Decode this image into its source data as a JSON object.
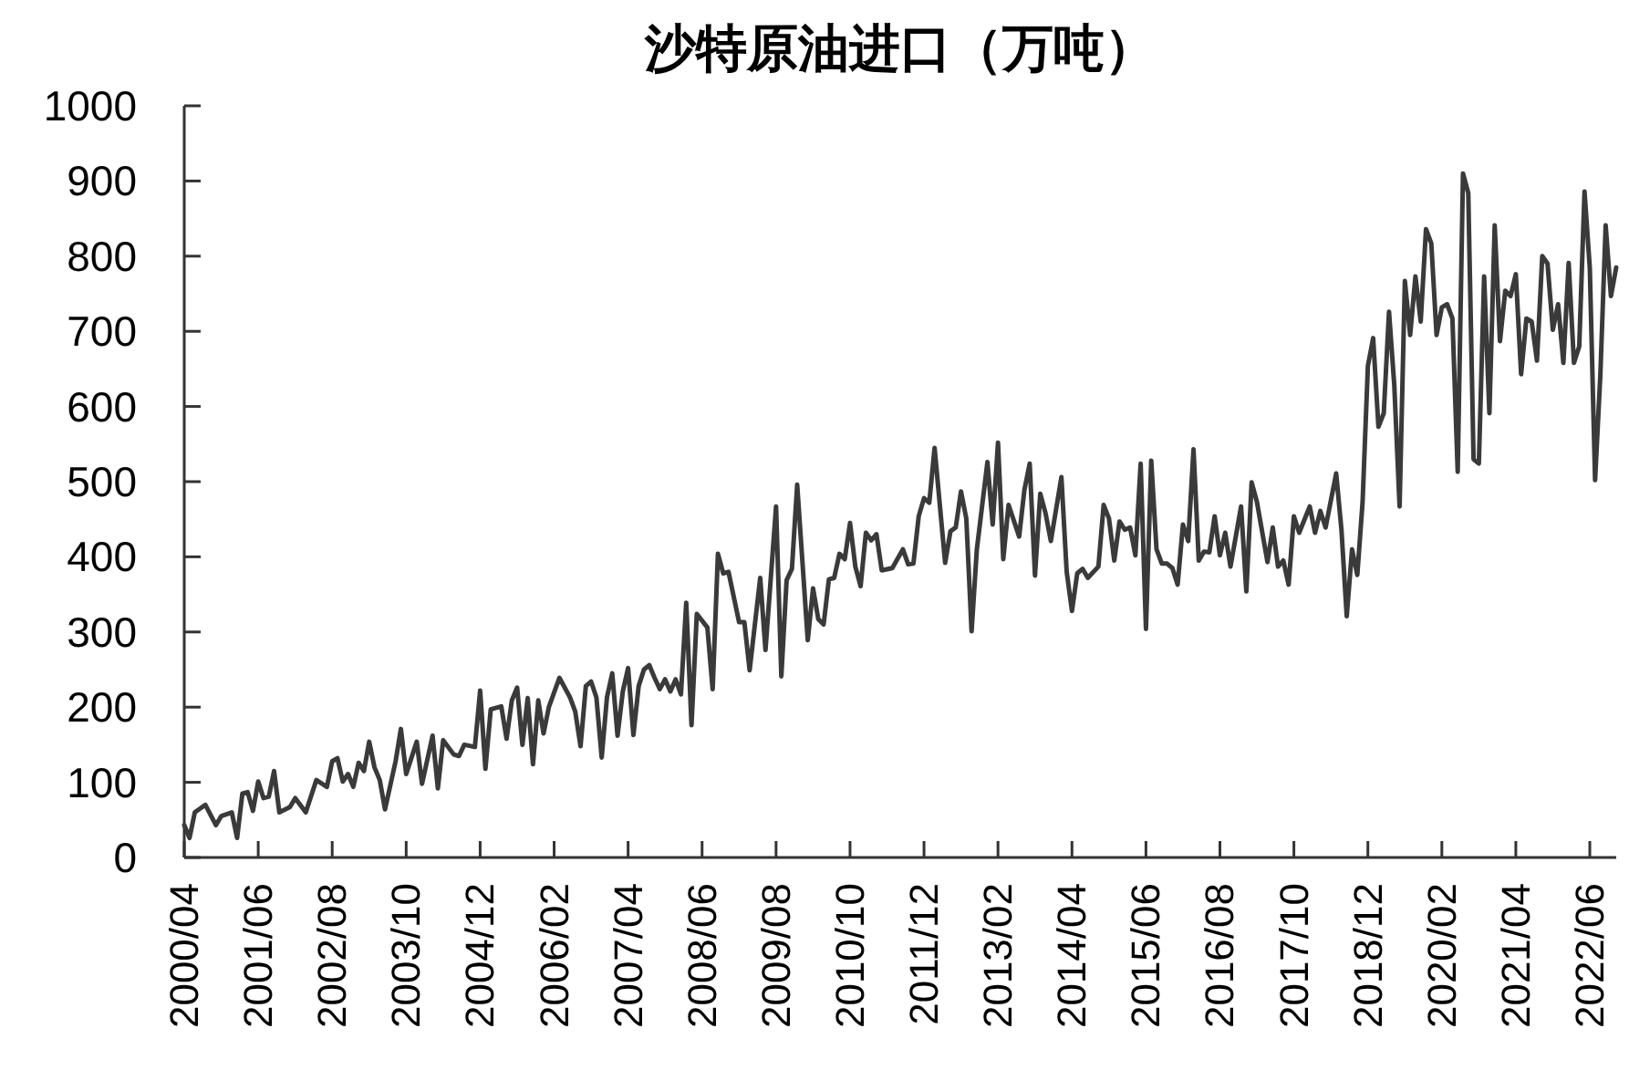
{
  "chart_data": {
    "type": "line",
    "title": "沙特原油进口（万吨）",
    "color": "#3a3a3a",
    "x": [
      "2000-04",
      "2000-05",
      "2000-06",
      "2000-08",
      "2000-10",
      "2000-11",
      "2001-01",
      "2001-02",
      "2001-03",
      "2001-04",
      "2001-05",
      "2001-06",
      "2001-07",
      "2001-08",
      "2001-09",
      "2001-10",
      "2001-12",
      "2002-01",
      "2002-03",
      "2002-05",
      "2002-07",
      "2002-08",
      "2002-09",
      "2002-10",
      "2002-11",
      "2002-12",
      "2003-01",
      "2003-02",
      "2003-03",
      "2003-04",
      "2003-05",
      "2003-06",
      "2003-08",
      "2003-09",
      "2003-10",
      "2003-12",
      "2004-01",
      "2004-03",
      "2004-04",
      "2004-05",
      "2004-07",
      "2004-08",
      "2004-09",
      "2004-11",
      "2004-12",
      "2005-01",
      "2005-02",
      "2005-04",
      "2005-05",
      "2005-06",
      "2005-07",
      "2005-08",
      "2005-09",
      "2005-10",
      "2005-11",
      "2005-12",
      "2006-01",
      "2006-03",
      "2006-05",
      "2006-06",
      "2006-07",
      "2006-08",
      "2006-09",
      "2006-10",
      "2006-11",
      "2006-12",
      "2007-01",
      "2007-02",
      "2007-03",
      "2007-04",
      "2007-05",
      "2007-06",
      "2007-07",
      "2007-08",
      "2007-09",
      "2007-10",
      "2007-11",
      "2007-12",
      "2008-01",
      "2008-02",
      "2008-03",
      "2008-04",
      "2008-05",
      "2008-07",
      "2008-08",
      "2008-09",
      "2008-10",
      "2008-11",
      "2009-01",
      "2009-02",
      "2009-03",
      "2009-05",
      "2009-06",
      "2009-08",
      "2009-09",
      "2009-10",
      "2009-11",
      "2009-12",
      "2010-02",
      "2010-03",
      "2010-04",
      "2010-05",
      "2010-06",
      "2010-07",
      "2010-08",
      "2010-09",
      "2010-10",
      "2010-11",
      "2010-12",
      "2011-01",
      "2011-02",
      "2011-03",
      "2011-04",
      "2011-06",
      "2011-08",
      "2011-09",
      "2011-10",
      "2011-11",
      "2011-12",
      "2012-01",
      "2012-02",
      "2012-04",
      "2012-05",
      "2012-06",
      "2012-07",
      "2012-08",
      "2012-09",
      "2012-10",
      "2012-12",
      "2013-01",
      "2013-02",
      "2013-03",
      "2013-04",
      "2013-06",
      "2013-07",
      "2013-08",
      "2013-09",
      "2013-10",
      "2013-11",
      "2013-12",
      "2014-02",
      "2014-03",
      "2014-04",
      "2014-05",
      "2014-06",
      "2014-07",
      "2014-09",
      "2014-10",
      "2014-11",
      "2014-12",
      "2015-01",
      "2015-02",
      "2015-03",
      "2015-04",
      "2015-05",
      "2015-06",
      "2015-07",
      "2015-08",
      "2015-09",
      "2015-10",
      "2015-11",
      "2015-12",
      "2016-01",
      "2016-02",
      "2016-03",
      "2016-04",
      "2016-05",
      "2016-06",
      "2016-07",
      "2016-08",
      "2016-09",
      "2016-10",
      "2016-12",
      "2017-01",
      "2017-02",
      "2017-03",
      "2017-05",
      "2017-06",
      "2017-07",
      "2017-08",
      "2017-09",
      "2017-10",
      "2017-11",
      "2018-01",
      "2018-02",
      "2018-03",
      "2018-04",
      "2018-06",
      "2018-07",
      "2018-08",
      "2018-09",
      "2018-10",
      "2018-11",
      "2018-12",
      "2019-01",
      "2019-02",
      "2019-03",
      "2019-04",
      "2019-05",
      "2019-06",
      "2019-07",
      "2019-08",
      "2019-09",
      "2019-10",
      "2019-11",
      "2019-12",
      "2020-01",
      "2020-02",
      "2020-03",
      "2020-04",
      "2020-05",
      "2020-06",
      "2020-07",
      "2020-08",
      "2020-09",
      "2020-10",
      "2020-11",
      "2020-12",
      "2021-01",
      "2021-02",
      "2021-03",
      "2021-04",
      "2021-05",
      "2021-06",
      "2021-07",
      "2021-08",
      "2021-09",
      "2021-10",
      "2021-11",
      "2021-12",
      "2022-01",
      "2022-02",
      "2022-03",
      "2022-04",
      "2022-05",
      "2022-06",
      "2022-07",
      "2022-08",
      "2022-09",
      "2022-10",
      "2022-11"
    ],
    "values": [
      43,
      26,
      60,
      70,
      43,
      55,
      60,
      26,
      85,
      87,
      62,
      101,
      79,
      81,
      115,
      60,
      67,
      79,
      60,
      103,
      94,
      128,
      132,
      101,
      111,
      94,
      126,
      115,
      154,
      120,
      103,
      64,
      128,
      171,
      111,
      154,
      98,
      162,
      92,
      156,
      137,
      135,
      150,
      147,
      222,
      118,
      197,
      201,
      158,
      209,
      226,
      150,
      212,
      124,
      209,
      165,
      200,
      239,
      213,
      194,
      148,
      228,
      234,
      213,
      133,
      213,
      245,
      162,
      221,
      252,
      163,
      228,
      250,
      256,
      239,
      224,
      237,
      221,
      237,
      217,
      339,
      176,
      324,
      306,
      224,
      404,
      378,
      380,
      313,
      313,
      249,
      372,
      276,
      467,
      241,
      369,
      384,
      496,
      289,
      358,
      317,
      310,
      370,
      372,
      404,
      397,
      445,
      387,
      361,
      432,
      422,
      430,
      382,
      385,
      410,
      390,
      391,
      454,
      478,
      472,
      545,
      392,
      434,
      439,
      487,
      451,
      301,
      410,
      526,
      443,
      552,
      397,
      469,
      427,
      489,
      524,
      375,
      484,
      458,
      421,
      506,
      380,
      328,
      378,
      384,
      372,
      387,
      469,
      451,
      395,
      447,
      436,
      439,
      402,
      524,
      304,
      528,
      410,
      391,
      391,
      385,
      363,
      443,
      421,
      543,
      395,
      407,
      406,
      454,
      402,
      432,
      387,
      467,
      354,
      499,
      473,
      393,
      439,
      387,
      395,
      363,
      454,
      432,
      467,
      432,
      461,
      439,
      511,
      436,
      321,
      410,
      376,
      473,
      654,
      691,
      573,
      591,
      726,
      628,
      467,
      767,
      695,
      773,
      713,
      836,
      817,
      695,
      732,
      736,
      717,
      513,
      910,
      884,
      530,
      524,
      773,
      591,
      841,
      687,
      754,
      747,
      776,
      643,
      717,
      713,
      661,
      800,
      790,
      702,
      736,
      658,
      791,
      658,
      680,
      886,
      784,
      502,
      643,
      841,
      747,
      785
    ],
    "xlim": [
      "2000-04",
      "2022-11"
    ],
    "xticks": [
      {
        "value": "2000-04",
        "label": "2000/04"
      },
      {
        "value": "2001-06",
        "label": "2001/06"
      },
      {
        "value": "2002-08",
        "label": "2002/08"
      },
      {
        "value": "2003-10",
        "label": "2003/10"
      },
      {
        "value": "2004-12",
        "label": "2004/12"
      },
      {
        "value": "2006-02",
        "label": "2006/02"
      },
      {
        "value": "2007-04",
        "label": "2007/04"
      },
      {
        "value": "2008-06",
        "label": "2008/06"
      },
      {
        "value": "2009-08",
        "label": "2009/08"
      },
      {
        "value": "2010-10",
        "label": "2010/10"
      },
      {
        "value": "2011-12",
        "label": "2011/12"
      },
      {
        "value": "2013-02",
        "label": "2013/02"
      },
      {
        "value": "2014-04",
        "label": "2014/04"
      },
      {
        "value": "2015-06",
        "label": "2015/06"
      },
      {
        "value": "2016-08",
        "label": "2016/08"
      },
      {
        "value": "2017-10",
        "label": "2017/10"
      },
      {
        "value": "2018-12",
        "label": "2018/12"
      },
      {
        "value": "2020-02",
        "label": "2020/02"
      },
      {
        "value": "2021-04",
        "label": "2021/04"
      },
      {
        "value": "2022-06",
        "label": "2022/06"
      }
    ],
    "ylim": [
      0,
      1000
    ],
    "yticks": [
      0,
      100,
      200,
      300,
      400,
      500,
      600,
      700,
      800,
      900,
      1000
    ]
  }
}
